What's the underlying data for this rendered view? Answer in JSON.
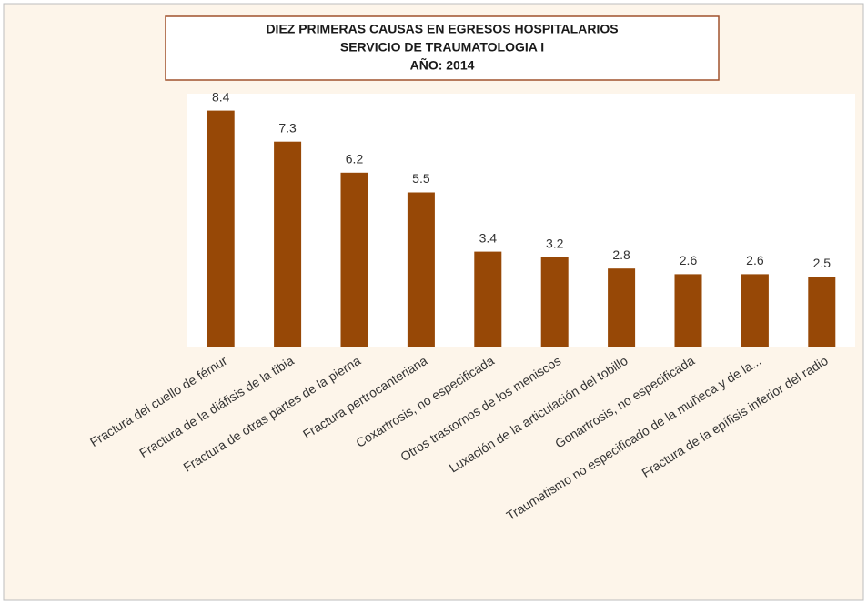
{
  "chart_data": {
    "type": "bar",
    "title": [
      "DIEZ PRIMERAS CAUSAS EN EGRESOS HOSPITALARIOS",
      "SERVICIO DE TRAUMATOLOGIA I",
      "AÑO: 2014"
    ],
    "categories": [
      "Fractura del cuello de fémur",
      "Fractura de la diáfisis de la tibia",
      "Fractura de otras partes de la pierna",
      "Fractura pertrocanteriana",
      "Coxartrosis, no especificada",
      "Otros trastornos de los meniscos",
      "Luxación de la articulación del tobillo",
      "Gonartrosis, no especificada",
      "Traumatismo no especificado de la muñeca y de la...",
      "Fractura de la epífisis inferior del radio"
    ],
    "values": [
      8.4,
      7.3,
      6.2,
      5.5,
      3.4,
      3.2,
      2.8,
      2.6,
      2.6,
      2.5
    ],
    "color": "#974806",
    "ylim": [
      0,
      9
    ]
  }
}
